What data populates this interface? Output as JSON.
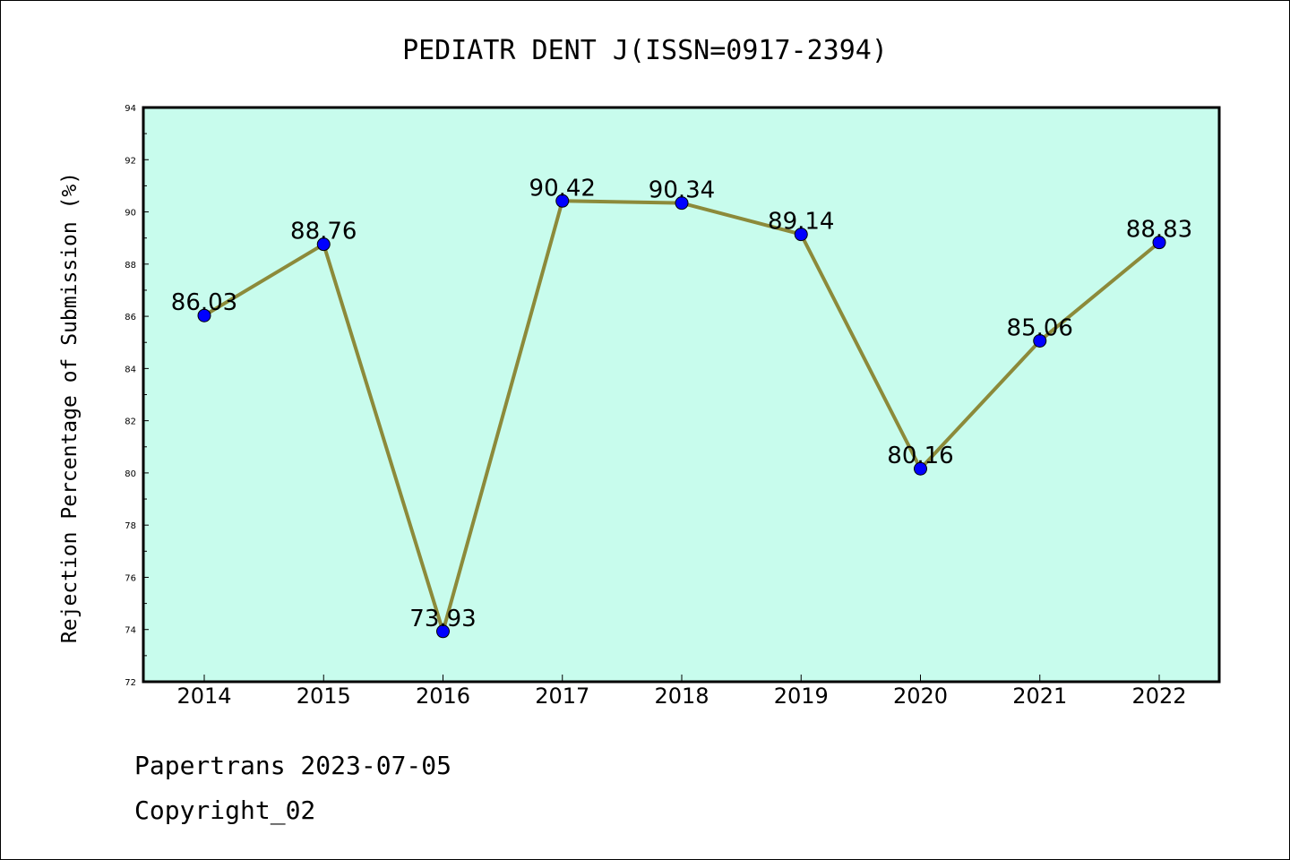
{
  "chart_data": {
    "type": "line",
    "title": "PEDIATR DENT J(ISSN=0917-2394)",
    "ylabel": "Rejection Percentage of Submission (%)",
    "xlabel": "",
    "categories": [
      "2014",
      "2015",
      "2016",
      "2017",
      "2018",
      "2019",
      "2020",
      "2021",
      "2022"
    ],
    "values": [
      86.03,
      88.76,
      73.93,
      90.42,
      90.34,
      89.14,
      80.16,
      85.06,
      88.83
    ],
    "data_labels": [
      "86.03",
      "88.76",
      "73.93",
      "90.42",
      "90.34",
      "89.14",
      "80.16",
      "85.06",
      "88.83"
    ],
    "ylim": [
      72,
      94
    ],
    "yticks": [
      "72",
      "74",
      "76",
      "78",
      "80",
      "82",
      "84",
      "86",
      "88",
      "90",
      "92",
      "94"
    ],
    "grid": false,
    "legend": "none",
    "colors": {
      "plot_background": "#c8fced",
      "line": "#8c8a3a",
      "marker": "#0000ff",
      "axes": "#000000"
    }
  },
  "footer": {
    "line1": "Papertrans 2023-07-05",
    "line2": "Copyright_02"
  }
}
